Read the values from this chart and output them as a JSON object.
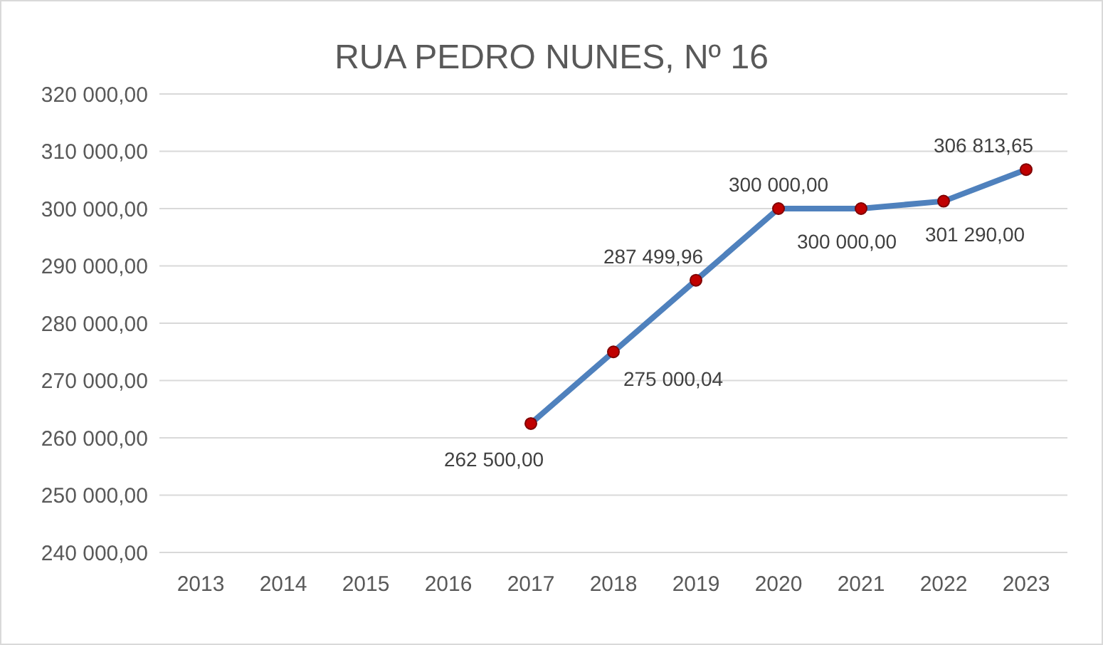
{
  "chart_data": {
    "type": "line",
    "title": "RUA PEDRO NUNES, Nº 16",
    "categories": [
      "2013",
      "2014",
      "2015",
      "2016",
      "2017",
      "2018",
      "2019",
      "2020",
      "2021",
      "2022",
      "2023"
    ],
    "series": [
      {
        "color": "#4f81bd",
        "values": [
          null,
          null,
          null,
          null,
          262500,
          275000.04,
          287499.96,
          300000,
          300000,
          301290,
          306813.65
        ],
        "value_labels": [
          null,
          null,
          null,
          null,
          "262 500,00",
          "275 000,04",
          "287 499,96",
          "300 000,00",
          "300 000,00",
          "301 290,00",
          "306 813,65"
        ]
      }
    ],
    "ylim": [
      240000,
      320000
    ],
    "yticks": [
      {
        "value": 240000,
        "label": "240 000,00"
      },
      {
        "value": 250000,
        "label": "250 000,00"
      },
      {
        "value": 260000,
        "label": "260 000,00"
      },
      {
        "value": 270000,
        "label": "270 000,00"
      },
      {
        "value": 280000,
        "label": "280 000,00"
      },
      {
        "value": 290000,
        "label": "290 000,00"
      },
      {
        "value": 300000,
        "label": "300 000,00"
      },
      {
        "value": 310000,
        "label": "310 000,00"
      },
      {
        "value": 320000,
        "label": "320 000,00"
      }
    ],
    "grid": "y",
    "marker": "circle",
    "line_style": "solid"
  }
}
